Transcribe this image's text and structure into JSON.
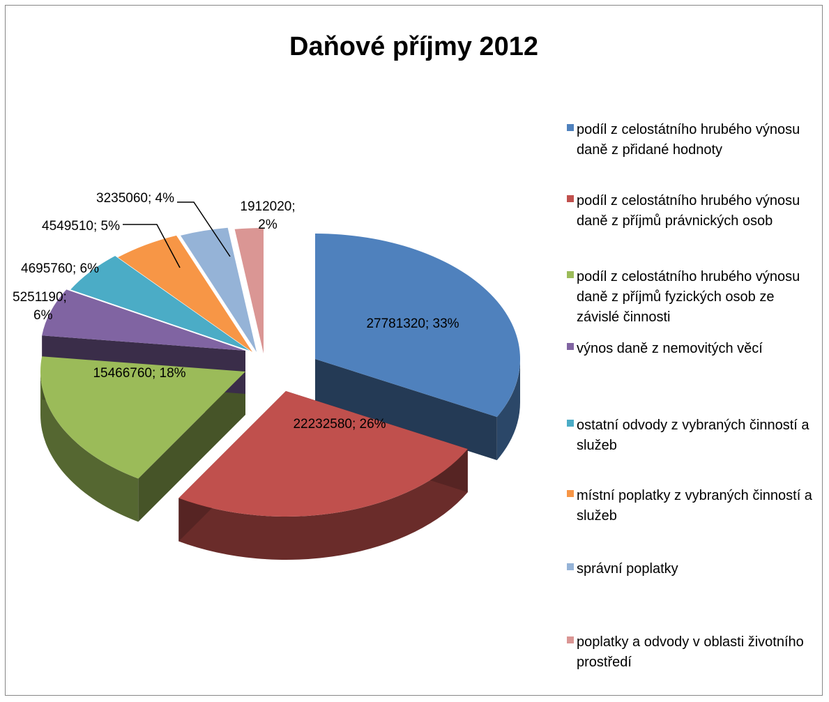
{
  "chart_data": {
    "type": "pie",
    "title": "Daňové příjmy 2012",
    "legend_position": "right",
    "series": [
      {
        "name": "podíl z celostátního hrubého výnosu daně z přidané hodnoty",
        "value": 27781320,
        "percent": "33%",
        "label_text": "27781320; 33%",
        "color": "#4F81BD"
      },
      {
        "name": "podíl z celostátního hrubého výnosu daně z příjmů právnických osob",
        "value": 22232580,
        "percent": "26%",
        "label_text": "22232580; 26%",
        "color": "#C0504D"
      },
      {
        "name": "podíl z celostátního hrubého výnosu daně z příjmů fyzických osob ze závislé činnosti",
        "value": 15466760,
        "percent": "18%",
        "label_text": "15466760; 18%",
        "color": "#9BBB59"
      },
      {
        "name": "výnos daně z nemovitých věcí",
        "value": 5251190,
        "percent": "6%",
        "label_text": "5251190; 6%",
        "color": "#8064A2"
      },
      {
        "name": "ostatní odvody z vybraných činností a služeb",
        "value": 4695760,
        "percent": "6%",
        "label_text": "4695760; 6%",
        "color": "#4BACC6"
      },
      {
        "name": "místní poplatky z vybraných činností a služeb",
        "value": 4549510,
        "percent": "5%",
        "label_text": "4549510; 5%",
        "color": "#F79646"
      },
      {
        "name": "správní poplatky",
        "value": 3235060,
        "percent": "4%",
        "label_text": "3235060; 4%",
        "color": "#95B3D7"
      },
      {
        "name": "poplatky a odvody v oblasti životního prostředí",
        "value": 1912020,
        "percent": "2%",
        "label_text": "1912020; 2%",
        "color": "#DA9694"
      }
    ]
  }
}
